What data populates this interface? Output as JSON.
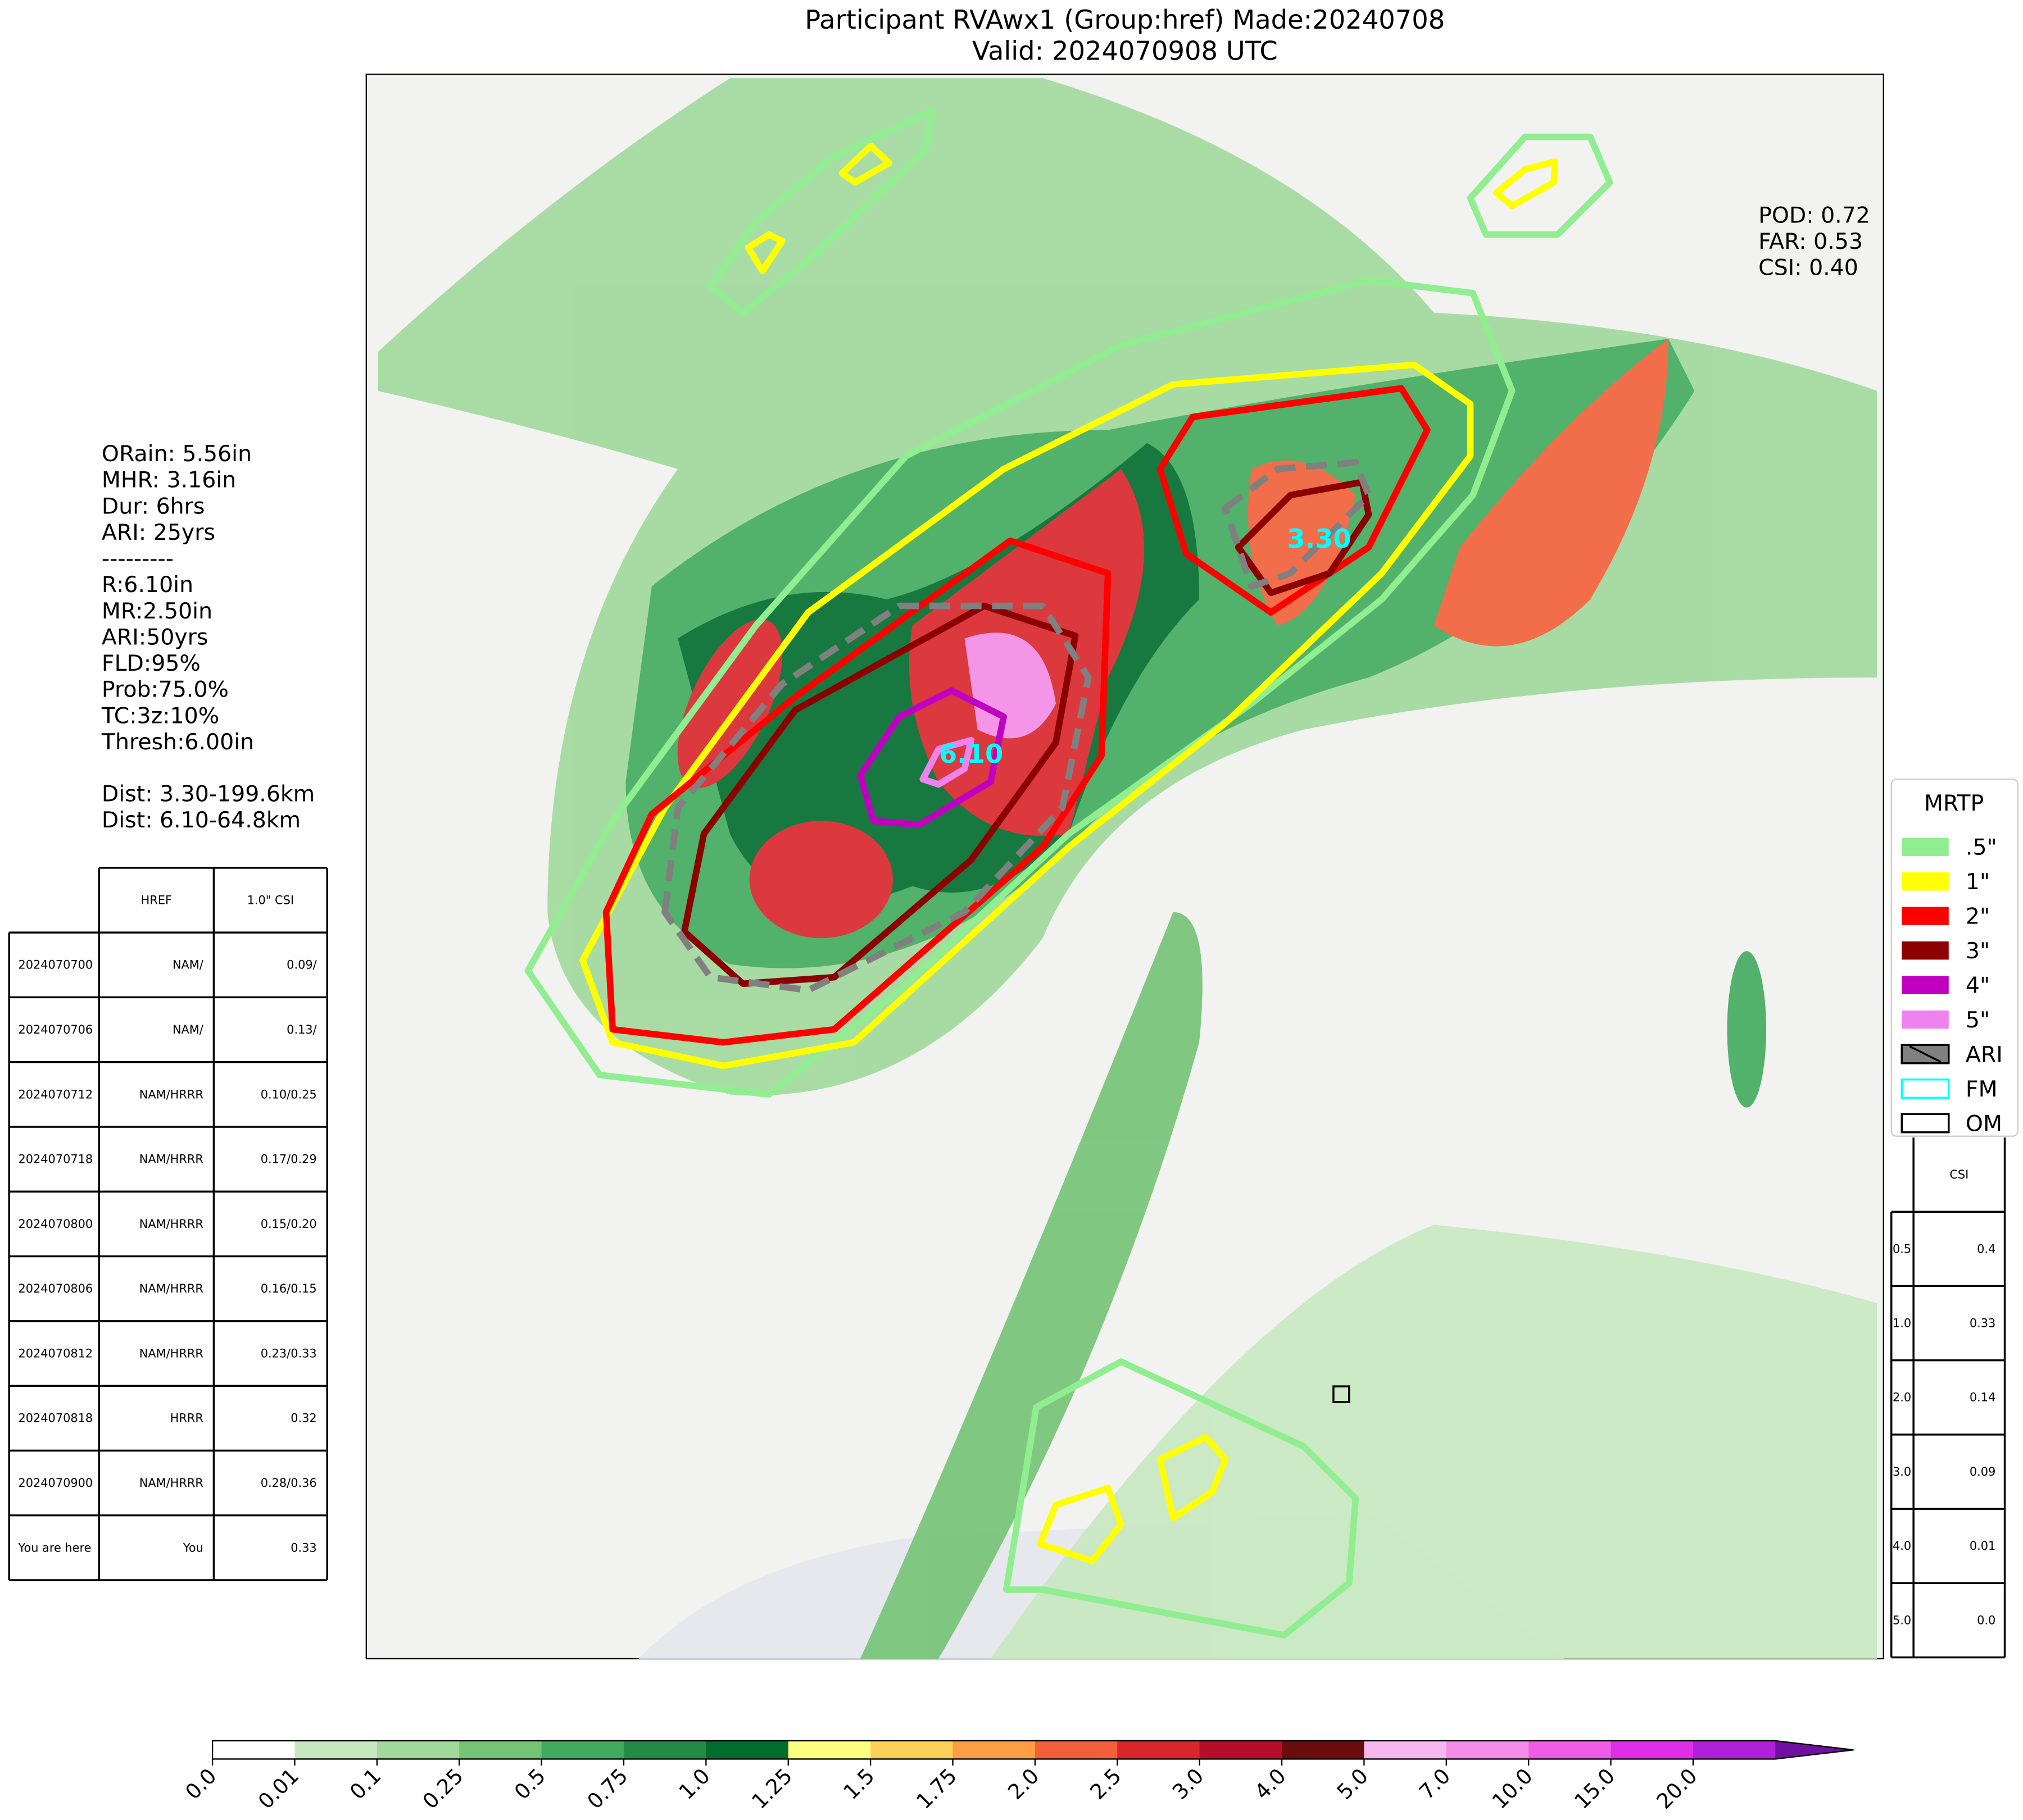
{
  "header": {
    "title": "Participant RVAwx1 (Group:href) Made:20240708",
    "subtitle": "Valid: 2024070908 UTC"
  },
  "scores": [
    "POD: 0.72",
    "FAR: 0.53",
    "CSI: 0.40"
  ],
  "stats": [
    "ORain: 5.56in",
    "MHR: 3.16in",
    "Dur: 6hrs",
    "ARI: 25yrs",
    "---------",
    "R:6.10in",
    "MR:2.50in",
    "ARI:50yrs",
    "FLD:95%",
    "Prob:75.0%",
    "TC:3z:10%",
    "Thresh:6.00in"
  ],
  "distances": [
    "Dist: 3.30-199.6km",
    "Dist: 6.10-64.8km"
  ],
  "history_table": {
    "header": [
      "HREF",
      "1.0\" CSI"
    ],
    "rows": [
      [
        "2024070700",
        "NAM/",
        "0.09/"
      ],
      [
        "2024070706",
        "NAM/",
        "0.13/"
      ],
      [
        "2024070712",
        "NAM/HRRR",
        "0.10/0.25"
      ],
      [
        "2024070718",
        "NAM/HRRR",
        "0.17/0.29"
      ],
      [
        "2024070800",
        "NAM/HRRR",
        "0.15/0.20"
      ],
      [
        "2024070806",
        "NAM/HRRR",
        "0.16/0.15"
      ],
      [
        "2024070812",
        "NAM/HRRR",
        "0.23/0.33"
      ],
      [
        "2024070818",
        "HRRR",
        "0.32"
      ],
      [
        "2024070900",
        "NAM/HRRR",
        "0.28/0.36"
      ],
      [
        "You are here",
        "You",
        "0.33"
      ]
    ]
  },
  "legend": {
    "title": "MRTP",
    "items": [
      {
        "label": ".5\"",
        "color": "#90ee90"
      },
      {
        "label": "1\"",
        "color": "#ffff00"
      },
      {
        "label": "2\"",
        "color": "#ff0000"
      },
      {
        "label": "3\"",
        "color": "#8b0000"
      },
      {
        "label": "4\"",
        "color": "#c000c0"
      },
      {
        "label": "5\"",
        "color": "#ee82ee"
      },
      {
        "label": "ARI",
        "color": "#808080"
      },
      {
        "label": "FM",
        "color": "#00ffff"
      },
      {
        "label": "OM",
        "color": "#000000"
      }
    ]
  },
  "csi_table": {
    "header": "CSI",
    "rows": [
      [
        "0.5",
        "0.4"
      ],
      [
        "1.0",
        "0.33"
      ],
      [
        "2.0",
        "0.14"
      ],
      [
        "3.0",
        "0.09"
      ],
      [
        "4.0",
        "0.01"
      ],
      [
        "5.0",
        "0.0"
      ]
    ]
  },
  "map": {
    "labels": [
      "6.10",
      "3.30"
    ]
  },
  "colorbar": {
    "labels": [
      "0.0",
      "0.01",
      "0.1",
      "0.25",
      "0.5",
      "0.75",
      "1.0",
      "1.25",
      "1.5",
      "1.75",
      "2.0",
      "2.5",
      "3.0",
      "4.0",
      "5.0",
      "7.0",
      "10.0",
      "15.0",
      "20.0"
    ],
    "colors": [
      "#ffffff",
      "#c7e9c0",
      "#a1d99b",
      "#74c476",
      "#41ab5d",
      "#238b45",
      "#006d2c",
      "#ffff80",
      "#fdd05a",
      "#fd9e45",
      "#f2603a",
      "#d9262a",
      "#b50e2a",
      "#6b0d0d",
      "#f7b8ef",
      "#f58ce8",
      "#ef5ce8",
      "#de2ee8",
      "#b020d8"
    ],
    "extend_color": "#7010a0"
  }
}
